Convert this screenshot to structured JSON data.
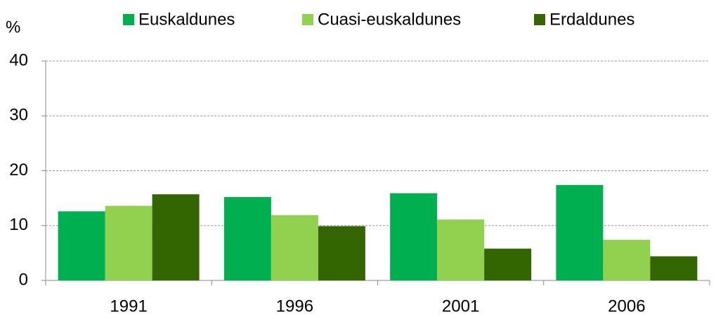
{
  "chart_data": {
    "type": "bar",
    "y_label": "%",
    "categories": [
      "1991",
      "1996",
      "2001",
      "2006"
    ],
    "series": [
      {
        "name": "Euskaldunes",
        "color": "#00b050",
        "values": [
          12.6,
          15.2,
          15.9,
          17.4
        ]
      },
      {
        "name": "Cuasi-euskaldunes",
        "color": "#92d050",
        "values": [
          13.6,
          11.9,
          11.1,
          7.4
        ]
      },
      {
        "name": "Erdaldunes",
        "color": "#336600",
        "values": [
          15.7,
          9.9,
          5.8,
          4.4
        ]
      }
    ],
    "ylim": [
      0,
      40
    ],
    "yticks": [
      0,
      10,
      20,
      30,
      40
    ],
    "grid": true,
    "legend": "top"
  }
}
